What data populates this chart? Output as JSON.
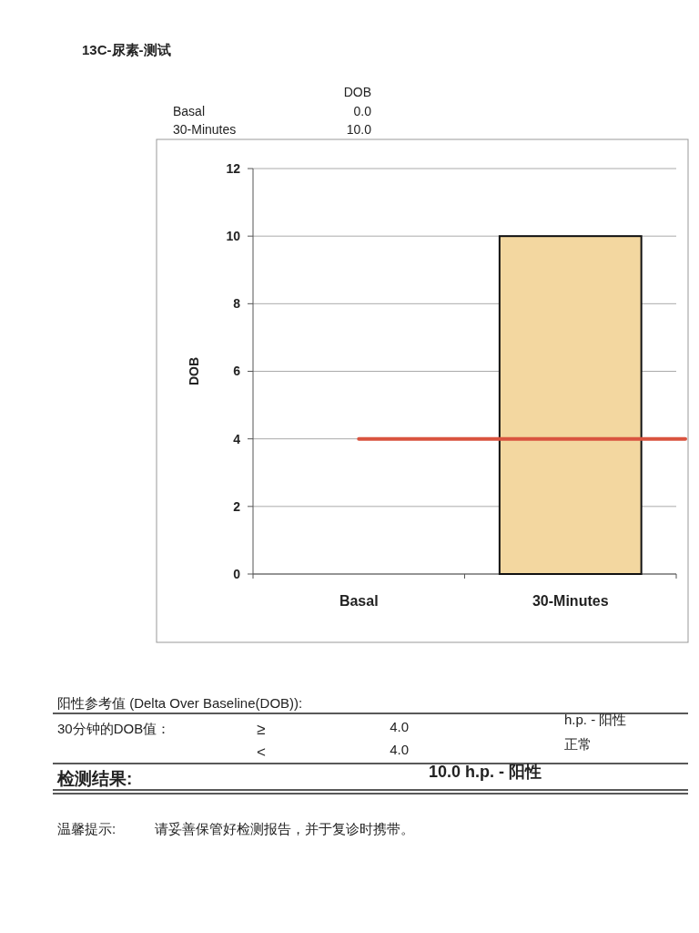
{
  "chart_data": {
    "type": "bar",
    "title": "13C-尿素-测试",
    "ylabel": "DOB",
    "categories": [
      "Basal",
      "30-Minutes"
    ],
    "series": [
      {
        "color": "#f3d7a0",
        "values": [
          0.0,
          10.0
        ]
      }
    ],
    "ylim": [
      0,
      12
    ],
    "yticks": [
      0,
      2,
      4,
      6,
      8,
      10,
      12
    ],
    "grid": "y",
    "ref_lines": [
      {
        "axis": "y",
        "value": 4.0,
        "color": "#d9533f"
      }
    ],
    "annotations": [
      "DOB",
      "Basal",
      "0.0",
      "30-Minutes",
      "10.0",
      "阳性参考值 (Delta Over Baseline(DOB)):",
      "30分钟的DOB值：",
      "≥",
      "4.0",
      "h.p. - 阳性",
      "<",
      "4.0",
      "正常",
      "检测结果:",
      "10.0 h.p. - 阳性",
      "温馨提示:",
      "请妥善保管好检测报告，并于复诊时携带。"
    ]
  }
}
